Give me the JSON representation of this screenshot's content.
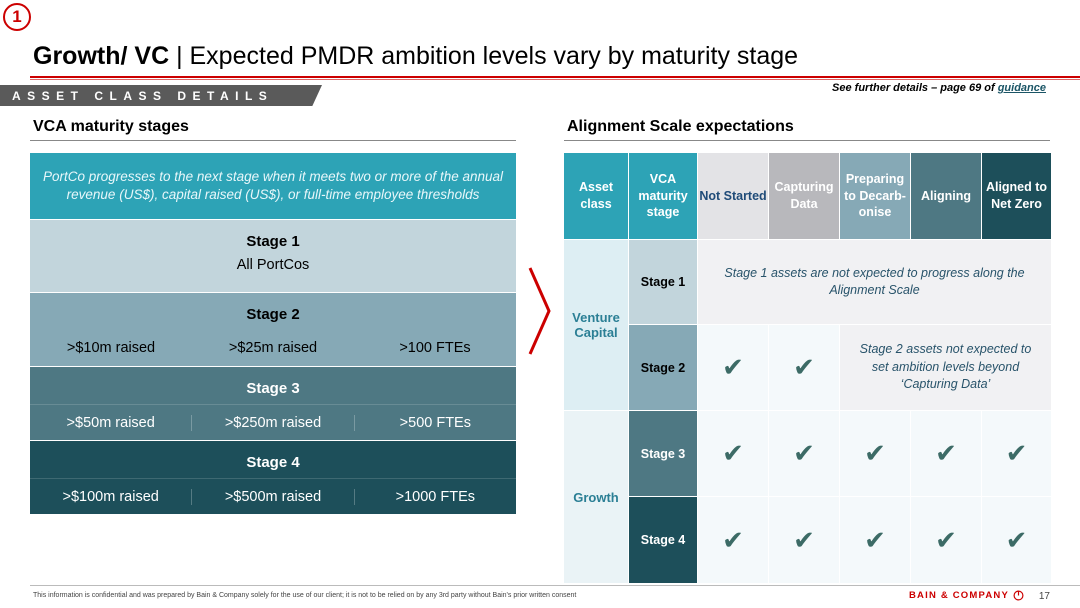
{
  "badge": "1",
  "title": {
    "bold": "Growth",
    "mid": "/ VC",
    "rest": " | Expected PMDR ambition levels vary by maturity stage"
  },
  "section_tag": "ASSET CLASS DETAILS",
  "see_further": {
    "prefix": "See further details – page 69 of ",
    "link": "guidance"
  },
  "left": {
    "heading": "VCA maturity stages",
    "intro": "PortCo progresses to the next stage when it meets two or more of the annual revenue (US$), capital raised (US$), or full-time employee thresholds",
    "stages": [
      {
        "name": "Stage 1",
        "cells": [
          "All PortCos"
        ]
      },
      {
        "name": "Stage 2",
        "cells": [
          ">$10m raised",
          ">$25m raised",
          ">100 FTEs"
        ]
      },
      {
        "name": "Stage 3",
        "cells": [
          ">$50m raised",
          ">$250m raised",
          ">500 FTEs"
        ]
      },
      {
        "name": "Stage 4",
        "cells": [
          ">$100m raised",
          ">$500m raised",
          ">1000 FTEs"
        ]
      }
    ]
  },
  "right": {
    "heading": "Alignment Scale expectations",
    "headers": [
      "Asset class",
      "VCA maturity stage",
      "Not Started",
      "Capturing Data",
      "Preparing to Decarb-onise",
      "Aligning",
      "Aligned to Net Zero"
    ],
    "asset_classes": [
      "Venture Capital",
      "Growth"
    ],
    "stage_labels": [
      "Stage 1",
      "Stage 2",
      "Stage 3",
      "Stage 4"
    ],
    "stage1_note": "Stage 1 assets are not expected to progress along the Alignment Scale",
    "stage2_note": "Stage  2 assets not expected to set ambition levels beyond ‘Capturing Data’",
    "check_glyph": "✔"
  },
  "colors": {
    "accent_red": "#cc0000",
    "teal_intro": "#2da3b6",
    "stage1": "#c2d5dc",
    "stage2": "#86a9b6",
    "stage3": "#4e7883",
    "stage4": "#1d4f5a"
  },
  "footer": {
    "disclaimer": "This information is confidential and was prepared by Bain & Company solely for the use of our client; it is not to be relied on by any 3rd party without Bain's prior written consent",
    "brand": "BAIN & COMPANY",
    "page": "17"
  }
}
